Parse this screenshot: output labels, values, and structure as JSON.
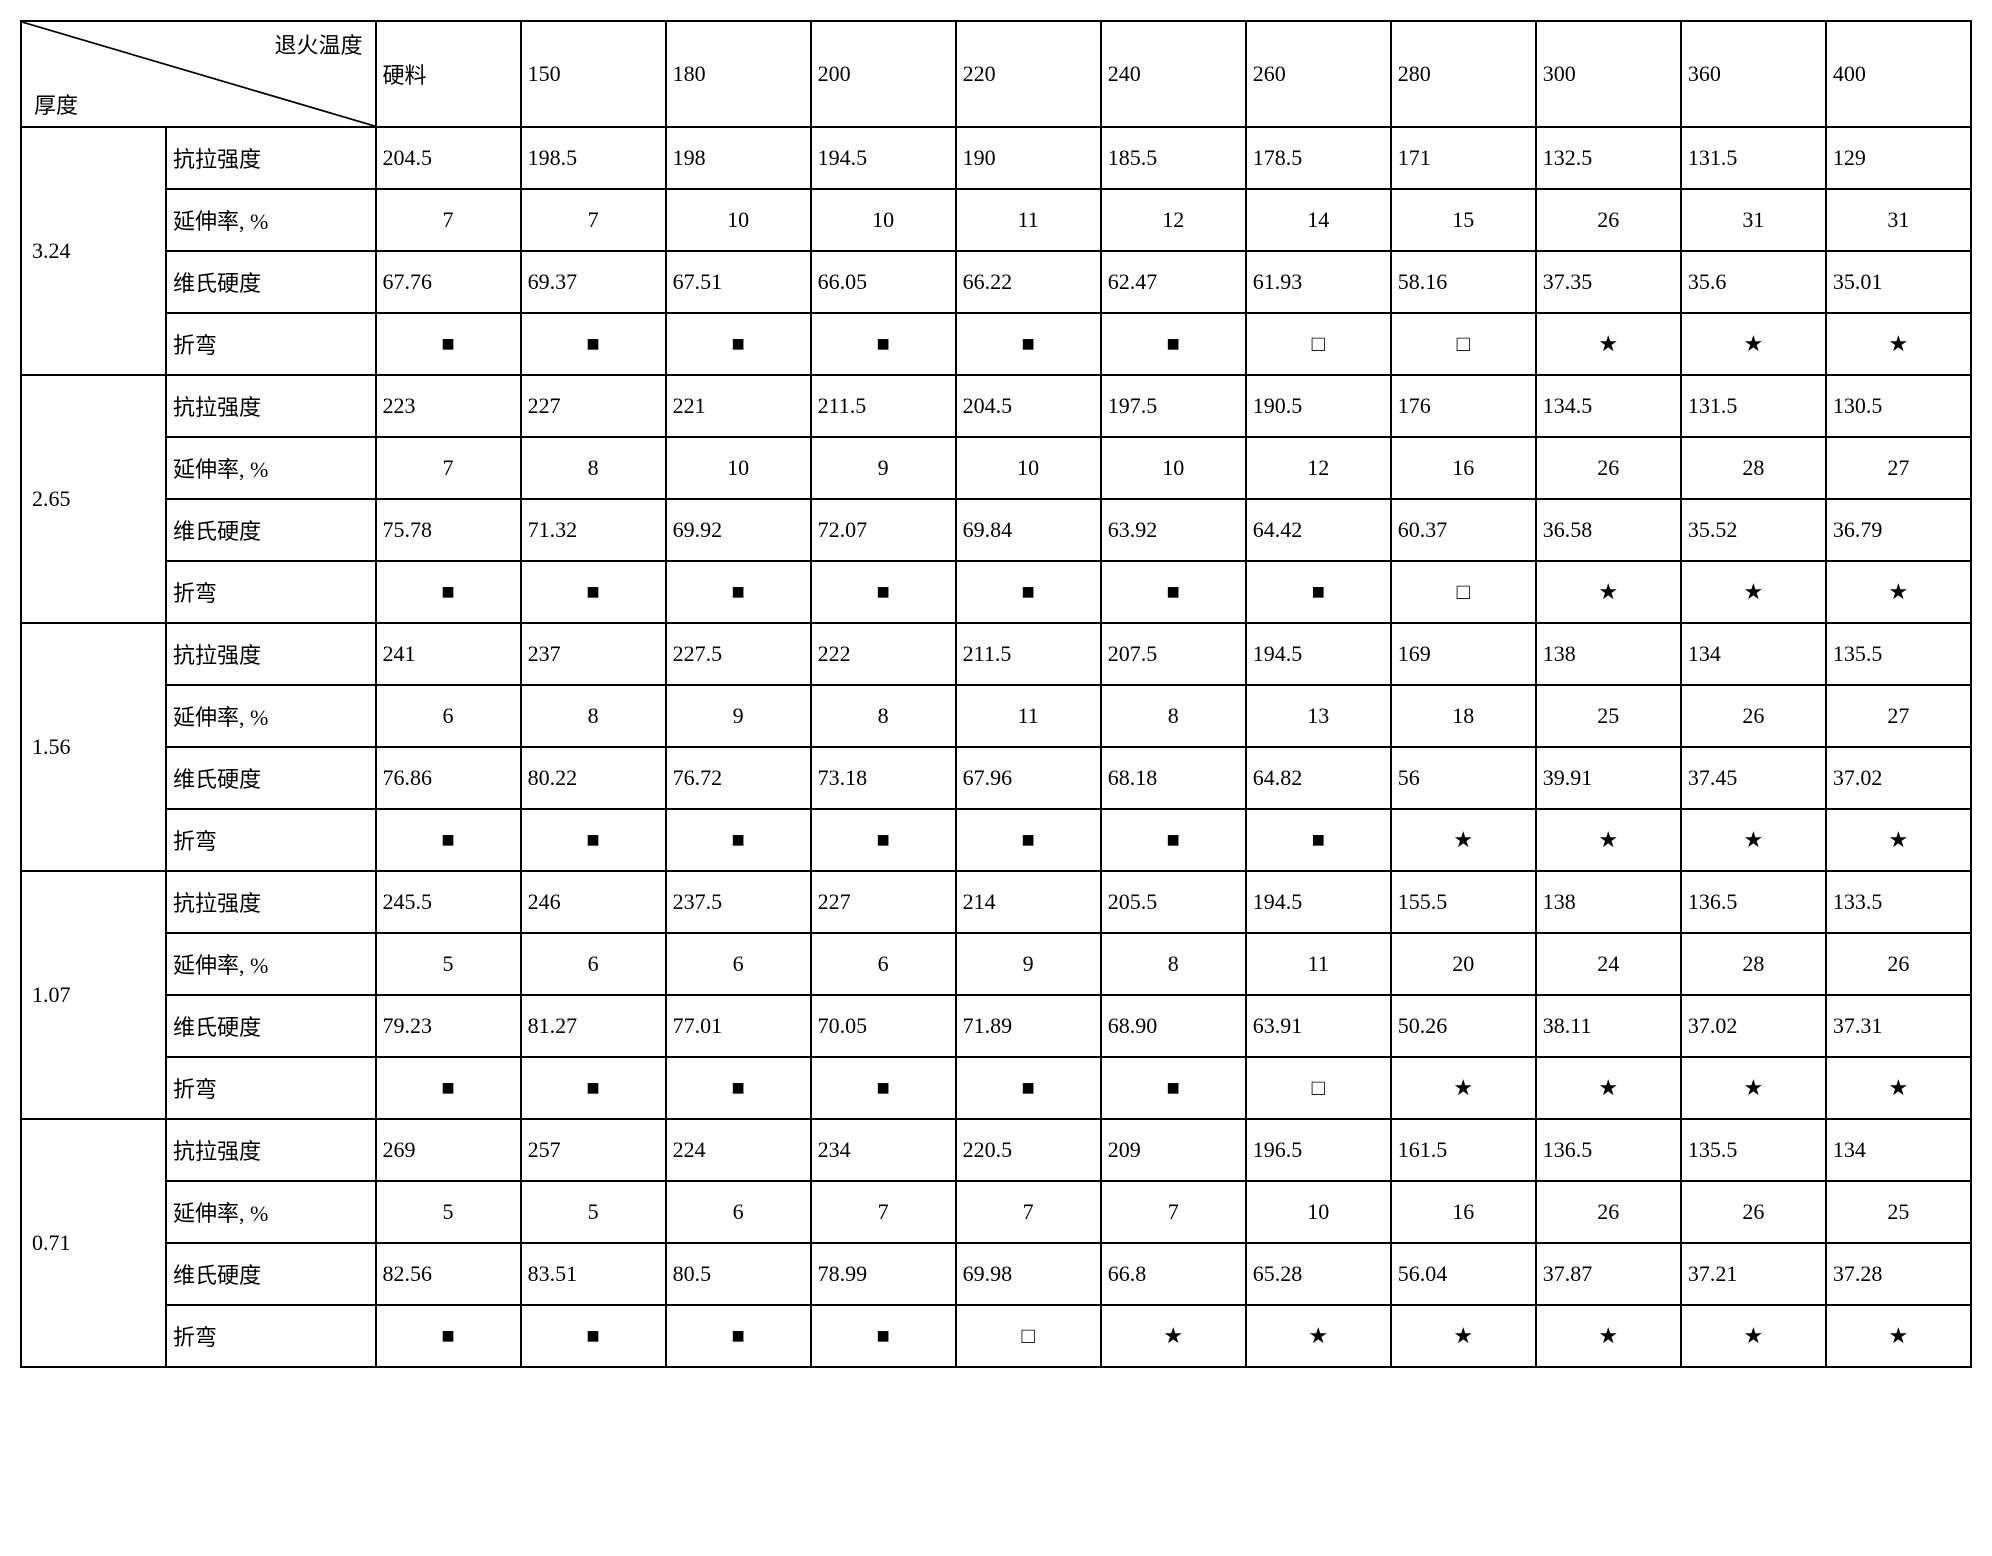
{
  "header": {
    "diag_top": "退火温度",
    "diag_bot": "厚度",
    "columns": [
      "硬料",
      "150",
      "180",
      "200",
      "220",
      "240",
      "260",
      "280",
      "300",
      "360",
      "400"
    ]
  },
  "row_labels": [
    "抗拉强度",
    "延伸率, %",
    "维氏硬度",
    "折弯"
  ],
  "symbols": {
    "filled_square": "■",
    "open_square": "□",
    "star": "★"
  },
  "groups": [
    {
      "thickness": "3.24",
      "tensile": [
        "204.5",
        "198.5",
        "198",
        "194.5",
        "190",
        "185.5",
        "178.5",
        "171",
        "132.5",
        "131.5",
        "129"
      ],
      "elong": [
        "7",
        "7",
        "10",
        "10",
        "11",
        "12",
        "14",
        "15",
        "26",
        "31",
        "31"
      ],
      "hardness": [
        "67.76",
        "69.37",
        "67.51",
        "66.05",
        "66.22",
        "62.47",
        "61.93",
        "58.16",
        "37.35",
        "35.6",
        "35.01"
      ],
      "bend": [
        "■",
        "■",
        "■",
        "■",
        "■",
        "■",
        "□",
        "□",
        "★",
        "★",
        "★"
      ]
    },
    {
      "thickness": "2.65",
      "tensile": [
        "223",
        "227",
        "221",
        "211.5",
        "204.5",
        "197.5",
        "190.5",
        "176",
        "134.5",
        "131.5",
        "130.5"
      ],
      "elong": [
        "7",
        "8",
        "10",
        "9",
        "10",
        "10",
        "12",
        "16",
        "26",
        "28",
        "27"
      ],
      "hardness": [
        "75.78",
        "71.32",
        "69.92",
        "72.07",
        "69.84",
        "63.92",
        "64.42",
        "60.37",
        "36.58",
        "35.52",
        "36.79"
      ],
      "bend": [
        "■",
        "■",
        "■",
        "■",
        "■",
        "■",
        "■",
        "□",
        "★",
        "★",
        "★"
      ]
    },
    {
      "thickness": "1.56",
      "tensile": [
        "241",
        "237",
        "227.5",
        "222",
        "211.5",
        "207.5",
        "194.5",
        "169",
        "138",
        "134",
        "135.5"
      ],
      "elong": [
        "6",
        "8",
        "9",
        "8",
        "11",
        "8",
        "13",
        "18",
        "25",
        "26",
        "27"
      ],
      "hardness": [
        "76.86",
        "80.22",
        "76.72",
        "73.18",
        "67.96",
        "68.18",
        "64.82",
        "56",
        "39.91",
        "37.45",
        "37.02"
      ],
      "bend": [
        "■",
        "■",
        "■",
        "■",
        "■",
        "■",
        "■",
        "★",
        "★",
        "★",
        "★"
      ]
    },
    {
      "thickness": "1.07",
      "tensile": [
        "245.5",
        "246",
        "237.5",
        "227",
        "214",
        "205.5",
        "194.5",
        "155.5",
        "138",
        "136.5",
        "133.5"
      ],
      "elong": [
        "5",
        "6",
        "6",
        "6",
        "9",
        "8",
        "11",
        "20",
        "24",
        "28",
        "26"
      ],
      "hardness": [
        "79.23",
        "81.27",
        "77.01",
        "70.05",
        "71.89",
        "68.90",
        "63.91",
        "50.26",
        "38.11",
        "37.02",
        "37.31"
      ],
      "bend": [
        "■",
        "■",
        "■",
        "■",
        "■",
        "■",
        "□",
        "★",
        "★",
        "★",
        "★"
      ]
    },
    {
      "thickness": "0.71",
      "tensile": [
        "269",
        "257",
        "224",
        "234",
        "220.5",
        "209",
        "196.5",
        "161.5",
        "136.5",
        "135.5",
        "134"
      ],
      "elong": [
        "5",
        "5",
        "6",
        "7",
        "7",
        "7",
        "10",
        "16",
        "26",
        "26",
        "25"
      ],
      "hardness": [
        "82.56",
        "83.51",
        "80.5",
        "78.99",
        "69.98",
        "66.8",
        "65.28",
        "56.04",
        "37.87",
        "37.21",
        "37.28"
      ],
      "bend": [
        "■",
        "■",
        "■",
        "■",
        "□",
        "★",
        "★",
        "★",
        "★",
        "★",
        "★"
      ]
    }
  ],
  "style": {
    "font_family": "SimSun",
    "font_size_pt": 16,
    "border_color": "#000000",
    "background_color": "#ffffff",
    "text_color": "#000000"
  }
}
